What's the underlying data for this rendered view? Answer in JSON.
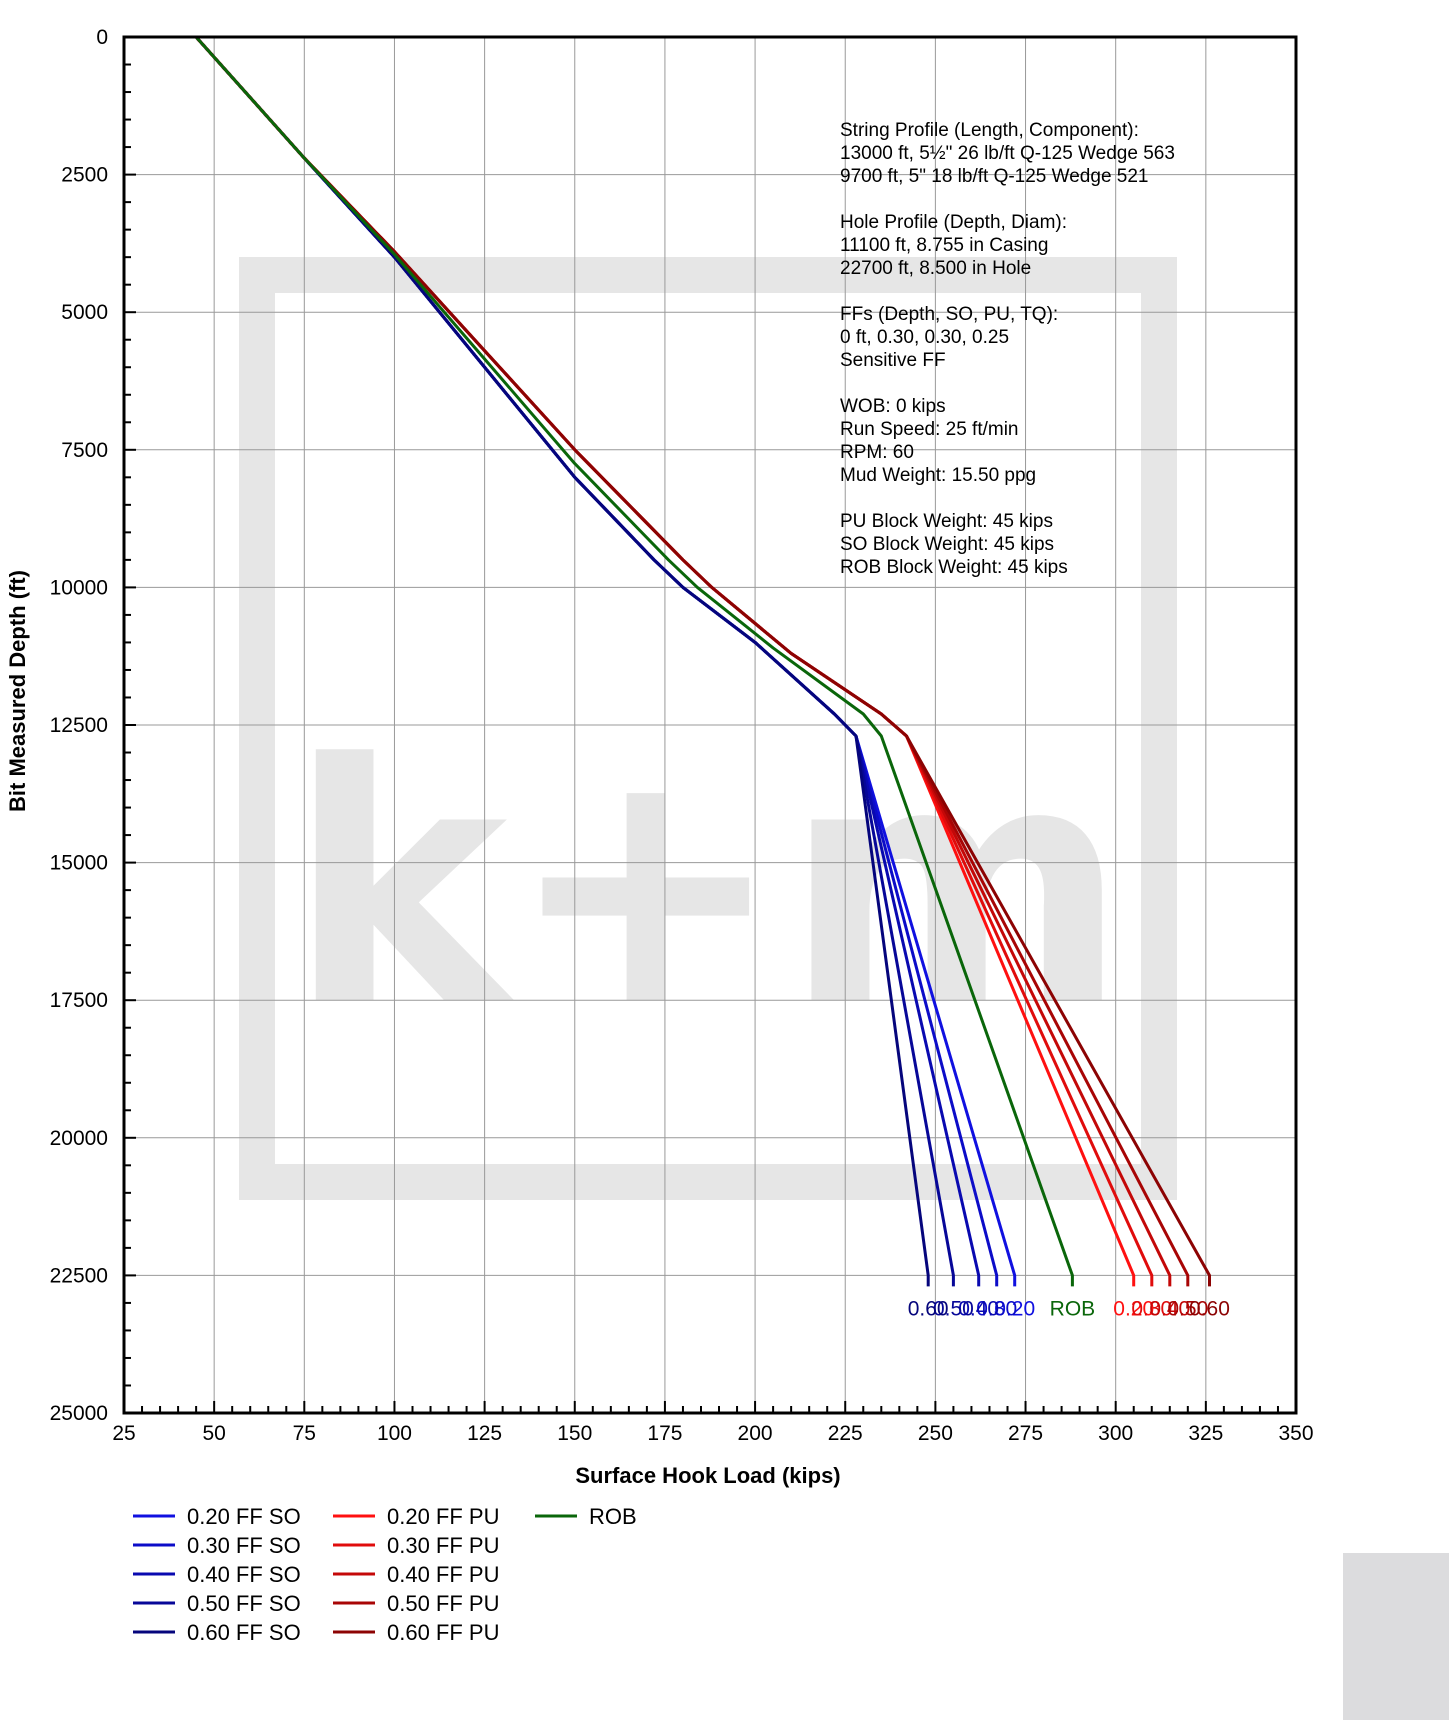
{
  "chart_data": {
    "type": "line",
    "title": "",
    "xlabel": "Surface Hook Load (kips)",
    "ylabel": "Bit Measured Depth (ft)",
    "xlim": [
      25,
      350
    ],
    "ylim": [
      0,
      25000
    ],
    "y_inverted": true,
    "grid": true,
    "x_ticks": [
      25,
      50,
      75,
      100,
      125,
      150,
      175,
      200,
      225,
      250,
      275,
      300,
      325,
      350
    ],
    "y_ticks": [
      0,
      2500,
      5000,
      7500,
      10000,
      12500,
      15000,
      17500,
      20000,
      22500,
      25000
    ],
    "watermark": "k+m",
    "series": [
      {
        "name": "0.20 FF SO",
        "color": "#1010e0",
        "end_label": "0.20",
        "points": [
          [
            45,
            0
          ],
          [
            75,
            2200
          ],
          [
            100,
            4000
          ],
          [
            125,
            6000
          ],
          [
            150,
            8000
          ],
          [
            172,
            9500
          ],
          [
            180,
            10000
          ],
          [
            200,
            11000
          ],
          [
            222,
            12300
          ],
          [
            228,
            12700
          ],
          [
            272,
            22500
          ],
          [
            272,
            22700
          ]
        ]
      },
      {
        "name": "0.30 FF SO",
        "color": "#0c0cc8",
        "end_label": "0.30",
        "points": [
          [
            45,
            0
          ],
          [
            75,
            2200
          ],
          [
            100,
            4000
          ],
          [
            125,
            6000
          ],
          [
            150,
            8000
          ],
          [
            172,
            9500
          ],
          [
            180,
            10000
          ],
          [
            200,
            11000
          ],
          [
            222,
            12300
          ],
          [
            228,
            12700
          ],
          [
            267,
            22500
          ],
          [
            267,
            22700
          ]
        ]
      },
      {
        "name": "0.40 FF SO",
        "color": "#0909b0",
        "end_label": "0.40",
        "points": [
          [
            45,
            0
          ],
          [
            75,
            2200
          ],
          [
            100,
            4000
          ],
          [
            125,
            6000
          ],
          [
            150,
            8000
          ],
          [
            172,
            9500
          ],
          [
            180,
            10000
          ],
          [
            200,
            11000
          ],
          [
            222,
            12300
          ],
          [
            228,
            12700
          ],
          [
            262,
            22500
          ],
          [
            262,
            22700
          ]
        ]
      },
      {
        "name": "0.50 FF SO",
        "color": "#070798",
        "end_label": "0.50",
        "points": [
          [
            45,
            0
          ],
          [
            75,
            2200
          ],
          [
            100,
            4000
          ],
          [
            125,
            6000
          ],
          [
            150,
            8000
          ],
          [
            172,
            9500
          ],
          [
            180,
            10000
          ],
          [
            200,
            11000
          ],
          [
            222,
            12300
          ],
          [
            228,
            12700
          ],
          [
            255,
            22500
          ],
          [
            255,
            22700
          ]
        ]
      },
      {
        "name": "0.60 FF SO",
        "color": "#05057c",
        "end_label": "0.60",
        "points": [
          [
            45,
            0
          ],
          [
            75,
            2200
          ],
          [
            100,
            4000
          ],
          [
            125,
            6000
          ],
          [
            150,
            8000
          ],
          [
            172,
            9500
          ],
          [
            180,
            10000
          ],
          [
            200,
            11000
          ],
          [
            222,
            12300
          ],
          [
            228,
            12700
          ],
          [
            248,
            22500
          ],
          [
            248,
            22700
          ]
        ]
      },
      {
        "name": "0.20 FF PU",
        "color": "#ff1010",
        "end_label": "0.20",
        "points": [
          [
            45,
            0
          ],
          [
            75,
            2200
          ],
          [
            100,
            3900
          ],
          [
            125,
            5700
          ],
          [
            150,
            7500
          ],
          [
            180,
            9500
          ],
          [
            188,
            10000
          ],
          [
            210,
            11200
          ],
          [
            235,
            12300
          ],
          [
            242,
            12700
          ],
          [
            305,
            22500
          ],
          [
            305,
            22700
          ]
        ]
      },
      {
        "name": "0.30 FF PU",
        "color": "#e00c0c",
        "end_label": "0.30",
        "points": [
          [
            45,
            0
          ],
          [
            75,
            2200
          ],
          [
            100,
            3900
          ],
          [
            125,
            5700
          ],
          [
            150,
            7500
          ],
          [
            180,
            9500
          ],
          [
            188,
            10000
          ],
          [
            210,
            11200
          ],
          [
            235,
            12300
          ],
          [
            242,
            12700
          ],
          [
            310,
            22500
          ],
          [
            310,
            22700
          ]
        ]
      },
      {
        "name": "0.40 FF PU",
        "color": "#c40808",
        "end_label": "0.40",
        "points": [
          [
            45,
            0
          ],
          [
            75,
            2200
          ],
          [
            100,
            3900
          ],
          [
            125,
            5700
          ],
          [
            150,
            7500
          ],
          [
            180,
            9500
          ],
          [
            188,
            10000
          ],
          [
            210,
            11200
          ],
          [
            235,
            12300
          ],
          [
            242,
            12700
          ],
          [
            315,
            22500
          ],
          [
            315,
            22700
          ]
        ]
      },
      {
        "name": "0.50 FF PU",
        "color": "#a80505",
        "end_label": "0.50",
        "points": [
          [
            45,
            0
          ],
          [
            75,
            2200
          ],
          [
            100,
            3900
          ],
          [
            125,
            5700
          ],
          [
            150,
            7500
          ],
          [
            180,
            9500
          ],
          [
            188,
            10000
          ],
          [
            210,
            11200
          ],
          [
            235,
            12300
          ],
          [
            242,
            12700
          ],
          [
            320,
            22500
          ],
          [
            320,
            22700
          ]
        ]
      },
      {
        "name": "0.60 FF PU",
        "color": "#8c0303",
        "end_label": "0.60",
        "points": [
          [
            45,
            0
          ],
          [
            75,
            2200
          ],
          [
            100,
            3900
          ],
          [
            125,
            5700
          ],
          [
            150,
            7500
          ],
          [
            180,
            9500
          ],
          [
            188,
            10000
          ],
          [
            210,
            11200
          ],
          [
            235,
            12300
          ],
          [
            242,
            12700
          ],
          [
            326,
            22500
          ],
          [
            326,
            22700
          ]
        ]
      },
      {
        "name": "ROB",
        "color": "#0a660a",
        "end_label": "ROB",
        "points": [
          [
            45,
            0
          ],
          [
            75,
            2200
          ],
          [
            100,
            3950
          ],
          [
            125,
            5850
          ],
          [
            150,
            7750
          ],
          [
            176,
            9500
          ],
          [
            184,
            10000
          ],
          [
            205,
            11100
          ],
          [
            230,
            12300
          ],
          [
            235,
            12700
          ],
          [
            288,
            22500
          ],
          [
            288,
            22700
          ]
        ]
      }
    ]
  },
  "annotations": {
    "info_lines": [
      "String Profile (Length, Component):",
      "13000 ft,  5½\"  26 lb/ft  Q-125  Wedge 563",
      "9700 ft,  5\"  18 lb/ft  Q-125  Wedge 521",
      "",
      "Hole Profile (Depth, Diam):",
      "11100 ft, 8.755 in Casing",
      "22700 ft, 8.500 in Hole",
      "",
      "FFs (Depth, SO, PU, TQ):",
      "0 ft, 0.30, 0.30, 0.25",
      "Sensitive FF",
      "",
      "WOB: 0 kips",
      "Run Speed: 25 ft/min",
      "RPM: 60",
      "Mud Weight: 15.50 ppg",
      "",
      "PU Block Weight: 45 kips",
      "SO Block Weight: 45 kips",
      "ROB Block Weight: 45 kips"
    ]
  },
  "legend": {
    "columns": [
      [
        "0.20 FF SO",
        "0.30 FF SO",
        "0.40 FF SO",
        "0.50 FF SO",
        "0.60 FF SO"
      ],
      [
        "0.20 FF PU",
        "0.30 FF PU",
        "0.40 FF PU",
        "0.50 FF PU",
        "0.60 FF PU"
      ],
      [
        "ROB"
      ]
    ]
  }
}
